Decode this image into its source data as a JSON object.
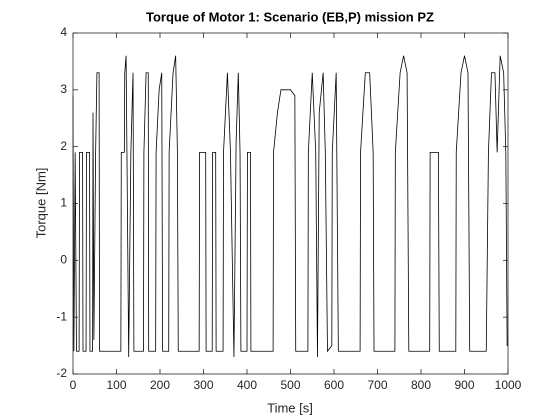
{
  "chart_data": {
    "type": "line",
    "title": "Torque of Motor 1: Scenario (EB,P) mission PZ",
    "xlabel": "Time [s]",
    "ylabel": "Torque [Nm]",
    "color": "#000000",
    "x": [
      0,
      2,
      5,
      8,
      14,
      15,
      22,
      23,
      30,
      31,
      38,
      39,
      45,
      46,
      48,
      52,
      55,
      60,
      61,
      110,
      111,
      118,
      119,
      122,
      124,
      128,
      133,
      138,
      140,
      162,
      163,
      168,
      173,
      174,
      190,
      191,
      198,
      204,
      206,
      220,
      221,
      230,
      236,
      240,
      242,
      290,
      291,
      305,
      306,
      320,
      321,
      328,
      329,
      345,
      346,
      355,
      362,
      370,
      375,
      380,
      384,
      386,
      400,
      401,
      408,
      409,
      460,
      461,
      470,
      478,
      500,
      510,
      512,
      540,
      541,
      550,
      558,
      562,
      566,
      575,
      580,
      585,
      595,
      596,
      605,
      610,
      660,
      661,
      672,
      682,
      690,
      692,
      740,
      741,
      752,
      760,
      768,
      772,
      820,
      821,
      830,
      840,
      842,
      880,
      881,
      892,
      900,
      908,
      912,
      950,
      955,
      962,
      970,
      975,
      982,
      990,
      995,
      998,
      1000
    ],
    "values": [
      2.9,
      -1.6,
      1.9,
      -1.6,
      -1.6,
      1.9,
      1.9,
      -1.6,
      -1.6,
      1.9,
      1.9,
      -1.6,
      -1.6,
      2.6,
      -1.4,
      1.9,
      3.3,
      3.3,
      -1.6,
      -1.6,
      1.9,
      1.9,
      3.3,
      3.6,
      1.9,
      -1.7,
      1.9,
      3.3,
      -1.6,
      -1.6,
      1.9,
      3.3,
      3.3,
      -1.6,
      -1.6,
      1.9,
      3.0,
      3.3,
      -1.6,
      -1.6,
      1.9,
      3.3,
      3.6,
      1.9,
      -1.6,
      -1.6,
      1.9,
      1.9,
      -1.6,
      -1.6,
      1.9,
      1.9,
      -1.6,
      -1.6,
      1.9,
      3.3,
      1.9,
      -1.7,
      2.1,
      3.3,
      1.9,
      -1.6,
      -1.6,
      1.9,
      1.9,
      -1.6,
      -1.6,
      1.9,
      2.6,
      3.0,
      3.0,
      2.9,
      -1.6,
      -1.6,
      1.9,
      3.3,
      1.9,
      -1.7,
      2.6,
      3.3,
      1.9,
      -1.6,
      -1.5,
      1.9,
      3.3,
      -1.6,
      -1.6,
      1.9,
      3.3,
      3.3,
      1.9,
      -1.6,
      -1.6,
      1.9,
      3.3,
      3.6,
      3.3,
      -1.6,
      -1.6,
      1.9,
      1.9,
      1.9,
      -1.6,
      -1.6,
      1.9,
      3.3,
      3.6,
      3.3,
      -1.6,
      -1.6,
      1.9,
      3.3,
      3.3,
      1.9,
      3.6,
      3.3,
      1.9,
      -1.5,
      -1.5
    ],
    "xlim": [
      0,
      1000
    ],
    "xticks": [
      0,
      100,
      200,
      300,
      400,
      500,
      600,
      700,
      800,
      900,
      1000
    ],
    "ylim": [
      -2,
      4
    ],
    "yticks": [
      -2,
      -1,
      0,
      1,
      2,
      3,
      4
    ]
  }
}
